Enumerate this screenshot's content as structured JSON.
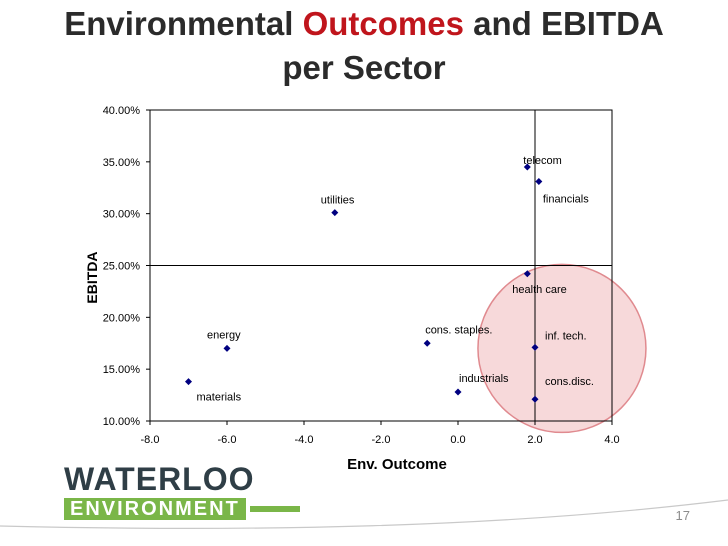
{
  "slide": {
    "title_part1": "Environmental",
    "title_accent": "Outcomes",
    "title_part2": "and EBITDA",
    "title_line2": "per Sector",
    "page_number": "17",
    "logo_top": "WATERLOO",
    "logo_bottom": "ENVIRONMENT"
  },
  "colors": {
    "accent": "#c0151c",
    "marker": "#000080",
    "highlight_circle": "#f2c4c6",
    "logo_green": "#7ab648"
  },
  "chart_data": {
    "type": "scatter",
    "xlabel": "Env. Outcome",
    "ylabel": "EBITDA",
    "xlim": [
      -8.0,
      4.0
    ],
    "ylim": [
      10.0,
      40.0
    ],
    "x_ticks": [
      "-8.0",
      "-6.0",
      "-4.0",
      "-2.0",
      "0.0",
      "2.0",
      "4.0"
    ],
    "y_ticks": [
      "10.00%",
      "15.00%",
      "20.00%",
      "25.00%",
      "30.00%",
      "35.00%",
      "40.00%"
    ],
    "grid": false,
    "quadrant_lines": {
      "x": 2.0,
      "y": 25.0
    },
    "points": [
      {
        "label": "materials",
        "x": -7.0,
        "y": 13.8
      },
      {
        "label": "energy",
        "x": -6.0,
        "y": 17.0
      },
      {
        "label": "utilities",
        "x": -3.2,
        "y": 30.1
      },
      {
        "label": "cons. staples.",
        "x": -0.8,
        "y": 17.5
      },
      {
        "label": "industrials",
        "x": 0.0,
        "y": 12.8
      },
      {
        "label": "telecom",
        "x": 1.8,
        "y": 34.5
      },
      {
        "label": "financials",
        "x": 2.1,
        "y": 33.1
      },
      {
        "label": "health care",
        "x": 1.8,
        "y": 24.2
      },
      {
        "label": "inf. tech.",
        "x": 2.0,
        "y": 17.1
      },
      {
        "label": "cons.disc.",
        "x": 2.0,
        "y": 12.1
      }
    ],
    "highlight_region": {
      "center_x": 2.7,
      "center_y": 17.0
    }
  }
}
